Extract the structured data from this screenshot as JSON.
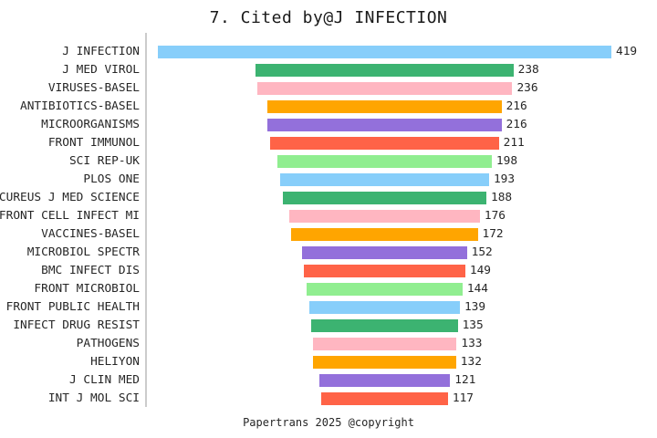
{
  "title": "7. Cited by@J INFECTION",
  "footer": "Papertrans 2025 @copyright",
  "chart_data": {
    "type": "bar",
    "subtype": "horizontal-centered-funnel",
    "title": "7. Cited by@J INFECTION",
    "categories": [
      "J INFECTION",
      "J MED VIROL",
      "VIRUSES-BASEL",
      "ANTIBIOTICS-BASEL",
      "MICROORGANISMS",
      "FRONT IMMUNOL",
      "SCI REP-UK",
      "PLOS ONE",
      "CUREUS J MED SCIENCE",
      "FRONT CELL INFECT MI",
      "VACCINES-BASEL",
      "MICROBIOL SPECTR",
      "BMC INFECT DIS",
      "FRONT MICROBIOL",
      "FRONT PUBLIC HEALTH",
      "INFECT DRUG RESIST",
      "PATHOGENS",
      "HELIYON",
      "J CLIN MED",
      "INT J MOL SCI"
    ],
    "values": [
      419,
      238,
      236,
      216,
      216,
      211,
      198,
      193,
      188,
      176,
      172,
      152,
      149,
      144,
      139,
      135,
      133,
      132,
      121,
      117
    ],
    "value_labels_position": "right-of-bar",
    "color_cycle": [
      "#87CEFA",
      "#3CB371",
      "#FFB6C1",
      "#FFA500",
      "#9370DB",
      "#FF6347",
      "#90EE90"
    ],
    "axis_line_color": "#cccccc",
    "text_color": "#262626",
    "background": "#ffffff",
    "xlabel": "",
    "ylabel": "",
    "grid": false,
    "legend": "none",
    "value_max": 419
  }
}
